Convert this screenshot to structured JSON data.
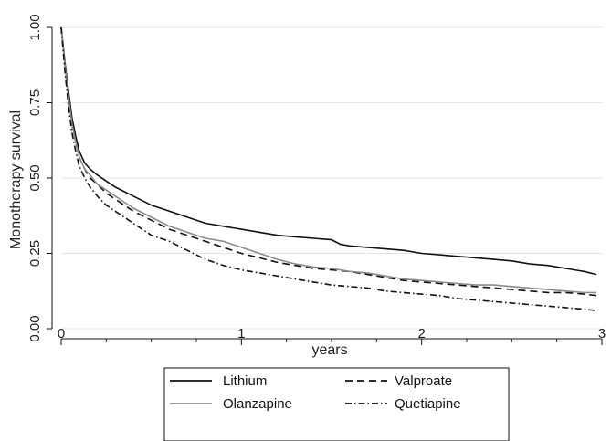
{
  "chart_data": {
    "type": "line",
    "title": "",
    "xlabel": "years",
    "ylabel": "Monotherapy survival",
    "xlim": [
      0,
      3
    ],
    "ylim": [
      0,
      1
    ],
    "xticks": [
      0,
      1,
      2,
      3
    ],
    "xtick_labels": [
      "0",
      "1",
      "2",
      "3"
    ],
    "yticks": [
      0,
      0.25,
      0.5,
      0.75,
      1
    ],
    "ytick_labels": [
      "0.00",
      "0.25",
      "0.50",
      "0.75",
      "1.00"
    ],
    "grid": "horizontal",
    "legend_position": "bottom",
    "series": [
      {
        "name": "Lithium",
        "color": "#111111",
        "dash": "solid",
        "x": [
          0,
          0.02,
          0.04,
          0.06,
          0.08,
          0.1,
          0.13,
          0.16,
          0.2,
          0.25,
          0.3,
          0.4,
          0.5,
          0.6,
          0.7,
          0.8,
          0.9,
          1.0,
          1.1,
          1.2,
          1.3,
          1.4,
          1.5,
          1.55,
          1.6,
          1.7,
          1.8,
          1.9,
          2.0,
          2.1,
          2.2,
          2.3,
          2.4,
          2.5,
          2.6,
          2.7,
          2.8,
          2.9,
          2.97
        ],
        "y": [
          1.0,
          0.89,
          0.79,
          0.7,
          0.64,
          0.59,
          0.55,
          0.53,
          0.51,
          0.49,
          0.47,
          0.44,
          0.41,
          0.39,
          0.37,
          0.35,
          0.34,
          0.33,
          0.32,
          0.31,
          0.305,
          0.3,
          0.295,
          0.28,
          0.275,
          0.27,
          0.265,
          0.26,
          0.25,
          0.245,
          0.24,
          0.235,
          0.23,
          0.225,
          0.215,
          0.21,
          0.2,
          0.19,
          0.18
        ]
      },
      {
        "name": "Valproate",
        "color": "#111111",
        "dash": "dashed",
        "x": [
          0,
          0.02,
          0.04,
          0.06,
          0.08,
          0.1,
          0.13,
          0.16,
          0.2,
          0.25,
          0.3,
          0.4,
          0.5,
          0.6,
          0.7,
          0.8,
          0.9,
          1.0,
          1.1,
          1.2,
          1.3,
          1.4,
          1.5,
          1.6,
          1.7,
          1.8,
          1.9,
          2.0,
          2.1,
          2.2,
          2.3,
          2.4,
          2.5,
          2.6,
          2.7,
          2.8,
          2.9,
          2.97
        ],
        "y": [
          1.0,
          0.88,
          0.77,
          0.68,
          0.62,
          0.57,
          0.53,
          0.5,
          0.48,
          0.45,
          0.43,
          0.39,
          0.36,
          0.33,
          0.31,
          0.29,
          0.27,
          0.25,
          0.235,
          0.22,
          0.21,
          0.2,
          0.195,
          0.19,
          0.18,
          0.17,
          0.16,
          0.155,
          0.15,
          0.145,
          0.14,
          0.135,
          0.13,
          0.125,
          0.12,
          0.12,
          0.115,
          0.11
        ]
      },
      {
        "name": "Olanzapine",
        "color": "#8c8c8c",
        "dash": "solid",
        "x": [
          0,
          0.02,
          0.04,
          0.06,
          0.08,
          0.1,
          0.13,
          0.16,
          0.2,
          0.25,
          0.3,
          0.4,
          0.5,
          0.6,
          0.7,
          0.8,
          0.9,
          1.0,
          1.1,
          1.2,
          1.3,
          1.4,
          1.5,
          1.6,
          1.7,
          1.8,
          1.9,
          2.0,
          2.1,
          2.2,
          2.3,
          2.4,
          2.5,
          2.6,
          2.7,
          2.8,
          2.9,
          2.97
        ],
        "y": [
          1.0,
          0.88,
          0.77,
          0.68,
          0.62,
          0.57,
          0.53,
          0.51,
          0.48,
          0.46,
          0.44,
          0.4,
          0.37,
          0.34,
          0.32,
          0.3,
          0.29,
          0.27,
          0.25,
          0.23,
          0.215,
          0.205,
          0.2,
          0.19,
          0.185,
          0.175,
          0.165,
          0.16,
          0.155,
          0.15,
          0.145,
          0.145,
          0.14,
          0.135,
          0.13,
          0.125,
          0.12,
          0.12
        ]
      },
      {
        "name": "Quetiapine",
        "color": "#111111",
        "dash": "dashdot",
        "x": [
          0,
          0.02,
          0.04,
          0.06,
          0.08,
          0.1,
          0.13,
          0.16,
          0.2,
          0.25,
          0.3,
          0.4,
          0.5,
          0.6,
          0.7,
          0.8,
          0.9,
          1.0,
          1.1,
          1.2,
          1.3,
          1.4,
          1.5,
          1.6,
          1.7,
          1.8,
          1.9,
          2.0,
          2.1,
          2.2,
          2.3,
          2.4,
          2.5,
          2.6,
          2.7,
          2.8,
          2.9,
          2.97
        ],
        "y": [
          1.0,
          0.86,
          0.74,
          0.65,
          0.59,
          0.54,
          0.5,
          0.47,
          0.44,
          0.41,
          0.39,
          0.35,
          0.31,
          0.29,
          0.26,
          0.23,
          0.21,
          0.195,
          0.185,
          0.175,
          0.165,
          0.155,
          0.145,
          0.14,
          0.135,
          0.125,
          0.12,
          0.115,
          0.11,
          0.1,
          0.095,
          0.09,
          0.085,
          0.08,
          0.075,
          0.07,
          0.065,
          0.06
        ]
      }
    ],
    "legend": {
      "rows": [
        [
          "Lithium",
          "Valproate"
        ],
        [
          "Olanzapine",
          "Quetiapine"
        ]
      ]
    }
  }
}
